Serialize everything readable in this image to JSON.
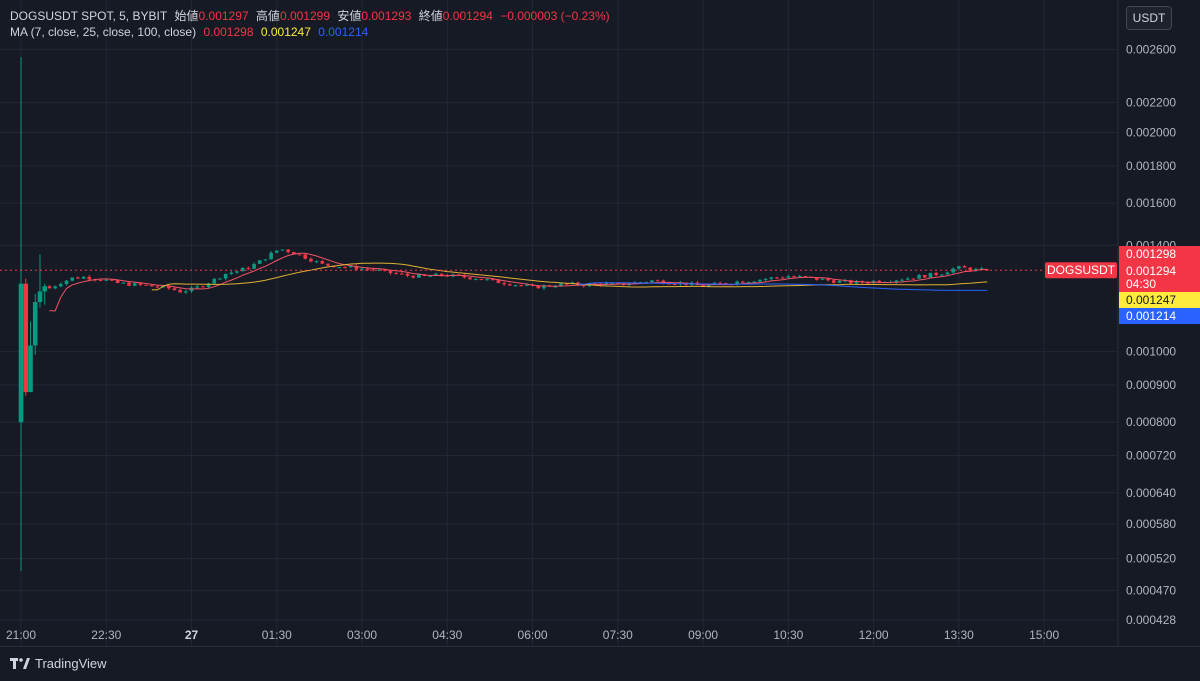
{
  "legend": {
    "symbol": "DOGSUSDT SPOT, 5, BYBIT",
    "open_label": "始値",
    "open": "0.001297",
    "high_label": "高値",
    "high": "0.001299",
    "low_label": "安値",
    "low": "0.001293",
    "close_label": "終値",
    "close": "0.001294",
    "change": "−0.000003 (−0.23%)",
    "ma_label": "MA (7, close, 25, close, 100, close)",
    "ma7": "0.001298",
    "ma25": "0.001247",
    "ma100": "0.001214"
  },
  "unit_button": "USDT",
  "brand": "TradingView",
  "colors": {
    "background": "#161a25",
    "grid": "#232733",
    "text": "#b2b5be",
    "up": "#089981",
    "down": "#f23645",
    "ma7": "#f05365",
    "ma25": "#e0b034",
    "ma100": "#2962ff",
    "price_line": "#f23645"
  },
  "price_tags": {
    "symbol_tag": "DOGSUSDT",
    "ma7": "0.001298",
    "last": "0.001294",
    "countdown": "04:30",
    "ma25": "0.001247",
    "ma100": "0.001214"
  },
  "chart_data": {
    "type": "candlestick",
    "interval": "5",
    "y_scale": "log",
    "y_ticks": [
      "0.002600",
      "0.002200",
      "0.002000",
      "0.001800",
      "0.001600",
      "0.001400",
      "0.001000",
      "0.000900",
      "0.000800",
      "0.000720",
      "0.000640",
      "0.000580",
      "0.000520",
      "0.000470",
      "0.000428"
    ],
    "x_ticks": [
      "21:00",
      "22:30",
      "27",
      "01:30",
      "03:00",
      "04:30",
      "06:00",
      "07:30",
      "09:00",
      "10:30",
      "12:00",
      "13:30",
      "15:00"
    ],
    "x_tick_hours": [
      21,
      22.5,
      24,
      25.5,
      27,
      28.5,
      30,
      31.5,
      33,
      34.5,
      36,
      37.5,
      39
    ],
    "x_range_hours": [
      20.63,
      40.3
    ],
    "ylim": [
      0.000428,
      0.00268
    ],
    "last_price": 0.001294,
    "ma7_last": 0.001298,
    "ma25_last": 0.001247,
    "ma100_last": 0.001214,
    "ma100_start_hour": 29.3,
    "opening_candles": [
      {
        "o": 0.0008,
        "h": 0.00254,
        "l": 0.0005,
        "c": 0.00124
      },
      {
        "o": 0.00124,
        "h": 0.00126,
        "l": 0.00087,
        "c": 0.00088
      },
      {
        "o": 0.00088,
        "h": 0.0011,
        "l": 0.00088,
        "c": 0.00102
      },
      {
        "o": 0.00102,
        "h": 0.0012,
        "l": 0.00099,
        "c": 0.00117
      },
      {
        "o": 0.00117,
        "h": 0.00136,
        "l": 0.00115,
        "c": 0.00121
      },
      {
        "o": 0.00121,
        "h": 0.00124,
        "l": 0.00116,
        "c": 0.00123
      }
    ],
    "price_path": [
      [
        21.5,
        0.001222
      ],
      [
        21.7,
        0.001245
      ],
      [
        21.9,
        0.001262
      ],
      [
        22.1,
        0.001266
      ],
      [
        22.4,
        0.001258
      ],
      [
        22.7,
        0.001242
      ],
      [
        23.0,
        0.001236
      ],
      [
        23.3,
        0.00123
      ],
      [
        23.6,
        0.001222
      ],
      [
        23.8,
        0.00121
      ],
      [
        24.0,
        0.001218
      ],
      [
        24.2,
        0.001234
      ],
      [
        24.4,
        0.001256
      ],
      [
        24.6,
        0.00128
      ],
      [
        24.8,
        0.00129
      ],
      [
        25.0,
        0.001305
      ],
      [
        25.2,
        0.00133
      ],
      [
        25.4,
        0.001362
      ],
      [
        25.55,
        0.001385
      ],
      [
        25.7,
        0.001375
      ],
      [
        25.9,
        0.001358
      ],
      [
        26.1,
        0.001338
      ],
      [
        26.3,
        0.001318
      ],
      [
        26.6,
        0.00131
      ],
      [
        26.9,
        0.001302
      ],
      [
        27.2,
        0.001296
      ],
      [
        27.5,
        0.001283
      ],
      [
        27.8,
        0.001272
      ],
      [
        28.1,
        0.001268
      ],
      [
        28.4,
        0.001275
      ],
      [
        28.7,
        0.001268
      ],
      [
        29.0,
        0.001262
      ],
      [
        29.3,
        0.00125
      ],
      [
        29.6,
        0.00124
      ],
      [
        30.0,
        0.001226
      ],
      [
        30.3,
        0.001232
      ],
      [
        30.6,
        0.001238
      ],
      [
        30.9,
        0.001236
      ],
      [
        31.2,
        0.00124
      ],
      [
        31.5,
        0.001236
      ],
      [
        31.8,
        0.001244
      ],
      [
        32.1,
        0.001252
      ],
      [
        32.4,
        0.001246
      ],
      [
        32.7,
        0.00124
      ],
      [
        33.0,
        0.00123
      ],
      [
        33.3,
        0.00124
      ],
      [
        33.6,
        0.001248
      ],
      [
        33.9,
        0.001254
      ],
      [
        34.2,
        0.001262
      ],
      [
        34.5,
        0.00127
      ],
      [
        34.8,
        0.001264
      ],
      [
        35.1,
        0.001256
      ],
      [
        35.4,
        0.001248
      ],
      [
        35.7,
        0.001244
      ],
      [
        36.0,
        0.00125
      ],
      [
        36.3,
        0.001254
      ],
      [
        36.6,
        0.001262
      ],
      [
        36.9,
        0.001272
      ],
      [
        37.2,
        0.001282
      ],
      [
        37.45,
        0.001304
      ],
      [
        37.6,
        0.001302
      ],
      [
        37.75,
        0.001296
      ],
      [
        37.9,
        0.001294
      ]
    ]
  }
}
